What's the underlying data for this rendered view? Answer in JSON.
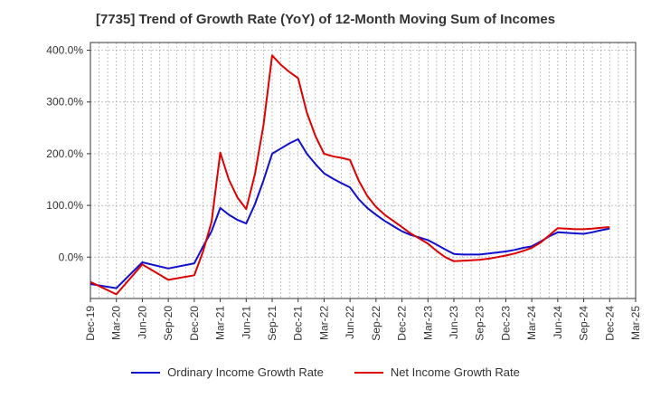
{
  "chart_data": {
    "type": "line",
    "title": "[7735]  Trend of Growth Rate (YoY) of 12-Month Moving Sum of Incomes",
    "x_labels": [
      "Dec-19",
      "Mar-20",
      "Jun-20",
      "Sep-20",
      "Dec-20",
      "Mar-21",
      "Jun-21",
      "Sep-21",
      "Dec-21",
      "Mar-22",
      "Jun-22",
      "Sep-22",
      "Dec-22",
      "Mar-23",
      "Jun-23",
      "Sep-23",
      "Dec-23",
      "Mar-24",
      "Jun-24",
      "Sep-24",
      "Dec-24",
      "Mar-25"
    ],
    "x_months": [
      "Dec-19",
      "Jan-20",
      "Feb-20",
      "Mar-20",
      "Apr-20",
      "May-20",
      "Jun-20",
      "Jul-20",
      "Aug-20",
      "Sep-20",
      "Oct-20",
      "Nov-20",
      "Dec-20",
      "Jan-21",
      "Feb-21",
      "Mar-21",
      "Apr-21",
      "May-21",
      "Jun-21",
      "Jul-21",
      "Aug-21",
      "Sep-21",
      "Oct-21",
      "Nov-21",
      "Dec-21",
      "Jan-22",
      "Feb-22",
      "Mar-22",
      "Apr-22",
      "May-22",
      "Jun-22",
      "Jul-22",
      "Aug-22",
      "Sep-22",
      "Oct-22",
      "Nov-22",
      "Dec-22",
      "Jan-23",
      "Feb-23",
      "Mar-23",
      "Apr-23",
      "May-23",
      "Jun-23",
      "Jul-23",
      "Aug-23",
      "Sep-23",
      "Oct-23",
      "Nov-23",
      "Dec-23",
      "Jan-24",
      "Feb-24",
      "Mar-24",
      "Apr-24",
      "May-24",
      "Jun-24",
      "Jul-24",
      "Aug-24",
      "Sep-24",
      "Oct-24",
      "Nov-24",
      "Dec-24",
      "Jan-25",
      "Feb-25",
      "Mar-25"
    ],
    "y_ticks": [
      0,
      100,
      200,
      300,
      400
    ],
    "y_tick_labels": [
      "0.0%",
      "100.0%",
      "200.0%",
      "300.0%",
      "400.0%"
    ],
    "ylim": [
      -80,
      415
    ],
    "grid": true,
    "legend_position": "bottom",
    "series": [
      {
        "name": "Ordinary Income Growth Rate",
        "color": "#1010cc",
        "x": [
          "Dec-19",
          "Mar-20",
          "Jun-20",
          "Sep-20",
          "Dec-20",
          "Jan-21",
          "Feb-21",
          "Mar-21",
          "Apr-21",
          "May-21",
          "Jun-21",
          "Jul-21",
          "Aug-21",
          "Sep-21",
          "Oct-21",
          "Nov-21",
          "Dec-21",
          "Jan-22",
          "Feb-22",
          "Mar-22",
          "Apr-22",
          "May-22",
          "Jun-22",
          "Jul-22",
          "Aug-22",
          "Sep-22",
          "Oct-22",
          "Nov-22",
          "Dec-22",
          "Jan-23",
          "Feb-23",
          "Mar-23",
          "Apr-23",
          "May-23",
          "Jun-23",
          "Jul-23",
          "Aug-23",
          "Sep-23",
          "Oct-23",
          "Nov-23",
          "Dec-23",
          "Jan-24",
          "Feb-24",
          "Mar-24",
          "Apr-24",
          "May-24",
          "Jun-24",
          "Jul-24",
          "Aug-24",
          "Sep-24",
          "Oct-24",
          "Nov-24",
          "Dec-24"
        ],
        "values": [
          -52,
          -60,
          -10,
          -22,
          -12,
          20,
          50,
          95,
          82,
          72,
          65,
          102,
          148,
          200,
          210,
          220,
          228,
          200,
          180,
          162,
          152,
          143,
          135,
          112,
          95,
          82,
          70,
          60,
          50,
          43,
          38,
          33,
          24,
          15,
          6,
          5,
          5,
          5,
          7,
          9,
          11,
          14,
          18,
          21,
          30,
          40,
          48,
          47,
          46,
          45,
          48,
          52,
          55
        ]
      },
      {
        "name": "Net Income Growth Rate",
        "color": "#dd0000",
        "x": [
          "Dec-19",
          "Mar-20",
          "Jun-20",
          "Sep-20",
          "Dec-20",
          "Jan-21",
          "Feb-21",
          "Mar-21",
          "Apr-21",
          "May-21",
          "Jun-21",
          "Jul-21",
          "Aug-21",
          "Sep-21",
          "Oct-21",
          "Nov-21",
          "Dec-21",
          "Jan-22",
          "Feb-22",
          "Mar-22",
          "Apr-22",
          "May-22",
          "Jun-22",
          "Jul-22",
          "Aug-22",
          "Sep-22",
          "Oct-22",
          "Nov-22",
          "Dec-22",
          "Jan-23",
          "Feb-23",
          "Mar-23",
          "Apr-23",
          "May-23",
          "Jun-23",
          "Jul-23",
          "Aug-23",
          "Sep-23",
          "Oct-23",
          "Nov-23",
          "Dec-23",
          "Jan-24",
          "Feb-24",
          "Mar-24",
          "Apr-24",
          "May-24",
          "Jun-24",
          "Jul-24",
          "Aug-24",
          "Sep-24",
          "Oct-24",
          "Nov-24",
          "Dec-24"
        ],
        "values": [
          -48,
          -72,
          -14,
          -44,
          -35,
          10,
          68,
          202,
          150,
          115,
          93,
          160,
          255,
          390,
          372,
          358,
          346,
          280,
          234,
          200,
          195,
          192,
          188,
          148,
          118,
          97,
          82,
          70,
          58,
          46,
          36,
          26,
          12,
          0,
          -8,
          -7,
          -6,
          -5,
          -3,
          0,
          3,
          7,
          12,
          18,
          28,
          42,
          56,
          55,
          54,
          54,
          55,
          57,
          58
        ]
      }
    ]
  }
}
